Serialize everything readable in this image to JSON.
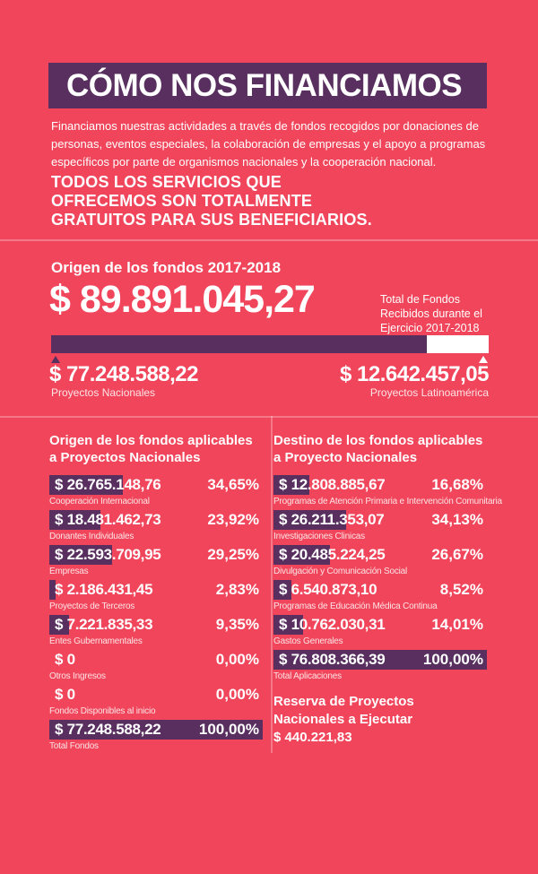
{
  "colors": {
    "background": "#F0455A",
    "purple": "#582F5F",
    "white": "#FFFFFF"
  },
  "header": {
    "title": "CÓMO NOS FINANCIAMOS"
  },
  "intro": "Financiamos nuestras actividades a través de fondos recogidos por donaciones de\npersonas, eventos especiales, la colaboración de empresas y el apoyo a programas\nespecíficos por parte de organismos nacionales y la cooperación nacional.",
  "statement": "TODOS LOS SERVICIOS QUE\nOFRECEMOS SON TOTALMENTE\nGRATUITOS PARA SUS BENEFICIARIOS.",
  "overview": {
    "section_title": "Origen de los fondos 2017-2018",
    "total_amount": "$ 89.891.045,27",
    "total_note": "Total de Fondos\nRecibidos durante el\nEjercicio 2017-2018",
    "national_pct": 85.94,
    "national": {
      "amount": "$ 77.248.588,22",
      "label": "Proyectos Nacionales"
    },
    "latam": {
      "amount": "$ 12.642.457,05",
      "label": "Proyectos Latinoamérica"
    }
  },
  "origin_column": {
    "title": "Origen de los fondos aplicables\na Proyectos Nacionales",
    "rows": [
      {
        "amount": "$ 26.765.148,76",
        "pct": 34.65,
        "pct_label": "34,65%",
        "label": "Cooperación Internacional"
      },
      {
        "amount": "$ 18.481.462,73",
        "pct": 23.92,
        "pct_label": "23,92%",
        "label": "Donantes Individuales"
      },
      {
        "amount": "$ 22.593.709,95",
        "pct": 29.25,
        "pct_label": "29,25%",
        "label": "Empresas"
      },
      {
        "amount": "$ 2.186.431,45",
        "pct": 2.83,
        "pct_label": "2,83%",
        "label": "Proyectos de Terceros"
      },
      {
        "amount": "$ 7.221.835,33",
        "pct": 9.35,
        "pct_label": "9,35%",
        "label": "Entes Gubernamentales"
      },
      {
        "amount": "$ 0",
        "pct": 0,
        "pct_label": "0,00%",
        "label": "Otros Ingresos"
      },
      {
        "amount": "$ 0",
        "pct": 0,
        "pct_label": "0,00%",
        "label": "Fondos Disponibles al inicio"
      },
      {
        "amount": "$ 77.248.588,22",
        "pct": 100,
        "pct_label": "100,00%",
        "label": "Total Fondos"
      }
    ]
  },
  "destination_column": {
    "title": "Destino de los fondos aplicables\na Proyecto Nacionales",
    "rows": [
      {
        "amount": "$ 12.808.885,67",
        "pct": 16.68,
        "pct_label": "16,68%",
        "label": "Programas de Atención Primaria e Intervención Comunitaria"
      },
      {
        "amount": "$ 26.211.353,07",
        "pct": 34.13,
        "pct_label": "34,13%",
        "label": "Investigaciones Clinicas"
      },
      {
        "amount": "$ 20.485.224,25",
        "pct": 26.67,
        "pct_label": "26,67%",
        "label": "Divulgación y Comunicación Social"
      },
      {
        "amount": "$ 6.540.873,10",
        "pct": 8.52,
        "pct_label": "8,52%",
        "label": "Programas de Educación Médica Continua"
      },
      {
        "amount": "$ 10.762.030,31",
        "pct": 14.01,
        "pct_label": "14,01%",
        "label": "Gastos Generales"
      },
      {
        "amount": "$ 76.808.366,39",
        "pct": 100,
        "pct_label": "100,00%",
        "label": "Total Aplicaciones"
      }
    ],
    "reserve_title": "Reserva de Proyectos Nacionales a Ejecutar",
    "reserve_amount": "$ 440.221,83"
  },
  "chart_data": [
    {
      "type": "bar",
      "title": "Origen de los fondos 2017-2018",
      "categories": [
        "Proyectos Nacionales",
        "Proyectos Latinoamérica"
      ],
      "values": [
        77248588.22,
        12642457.05
      ],
      "total": 89891045.27,
      "annotation": "Total de Fondos Recibidos durante el Ejercicio 2017-2018"
    },
    {
      "type": "bar",
      "title": "Origen de los fondos aplicables a Proyectos Nacionales",
      "categories": [
        "Cooperación Internacional",
        "Donantes Individuales",
        "Empresas",
        "Proyectos de Terceros",
        "Entes Gubernamentales",
        "Otros Ingresos",
        "Fondos Disponibles al inicio",
        "Total Fondos"
      ],
      "values": [
        26765148.76,
        18481462.73,
        22593709.95,
        2186431.45,
        7221835.33,
        0,
        0,
        77248588.22
      ],
      "percentages": [
        34.65,
        23.92,
        29.25,
        2.83,
        9.35,
        0.0,
        0.0,
        100.0
      ]
    },
    {
      "type": "bar",
      "title": "Destino de los fondos aplicables a Proyecto Nacionales",
      "categories": [
        "Programas de Atención Primaria e Intervención Comunitaria",
        "Investigaciones Clinicas",
        "Divulgación y Comunicación Social",
        "Programas de Educación Médica Continua",
        "Gastos Generales",
        "Total Aplicaciones"
      ],
      "values": [
        12808885.67,
        26211353.07,
        20485224.25,
        6540873.1,
        10762030.31,
        76808366.39
      ],
      "percentages": [
        16.68,
        34.13,
        26.67,
        8.52,
        14.01,
        100.0
      ],
      "reserve": {
        "label": "Reserva de Proyectos Nacionales a Ejecutar",
        "value": 440221.83
      }
    }
  ]
}
